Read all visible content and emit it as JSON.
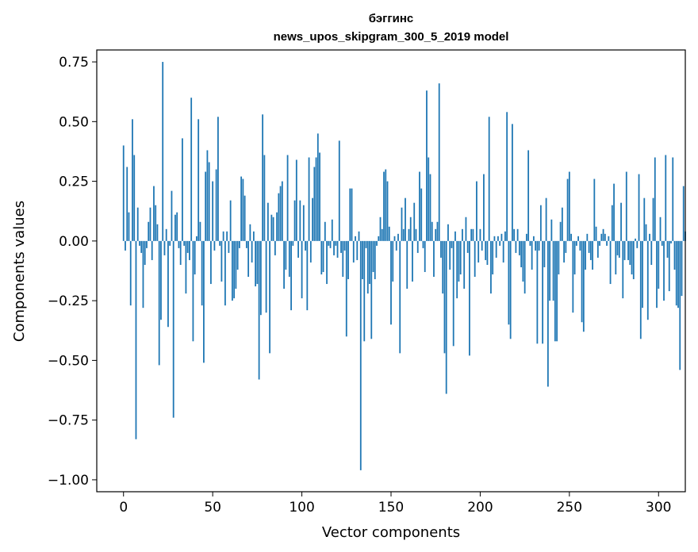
{
  "chart_data": {
    "type": "bar",
    "title": "бэггинс",
    "subtitle": "news_upos_skipgram_300_5_2019 model",
    "xlabel": "Vector components",
    "ylabel": "Components values",
    "xlim": [
      -15,
      315
    ],
    "ylim": [
      -1.05,
      0.8
    ],
    "xticks": [
      0,
      50,
      100,
      150,
      200,
      250,
      300
    ],
    "xtick_labels": [
      "0",
      "50",
      "100",
      "150",
      "200",
      "250",
      "300"
    ],
    "yticks": [
      0.75,
      0.5,
      0.25,
      0.0,
      -0.25,
      -0.5,
      -0.75,
      -1.0
    ],
    "ytick_labels": [
      "0.75",
      "0.50",
      "0.25",
      "0.00",
      "−0.25",
      "−0.50",
      "−0.75",
      "−1.00"
    ],
    "bar_color": "#1f77b4",
    "grid": false,
    "values": [
      0.4,
      -0.04,
      0.31,
      0.12,
      -0.27,
      0.51,
      0.36,
      -0.83,
      0.14,
      -0.02,
      -0.05,
      -0.28,
      -0.1,
      -0.03,
      0.08,
      0.14,
      -0.08,
      0.23,
      0.15,
      0.07,
      -0.52,
      -0.33,
      0.75,
      -0.06,
      0.05,
      -0.36,
      -0.02,
      0.21,
      -0.74,
      0.11,
      0.12,
      -0.03,
      -0.1,
      0.43,
      -0.02,
      -0.22,
      -0.05,
      -0.08,
      0.6,
      -0.42,
      -0.14,
      0.02,
      0.51,
      0.08,
      -0.27,
      -0.51,
      0.29,
      0.38,
      0.33,
      -0.18,
      0.25,
      -0.04,
      0.3,
      0.52,
      -0.02,
      -0.17,
      0.04,
      -0.27,
      0.04,
      -0.05,
      0.17,
      -0.25,
      -0.24,
      -0.2,
      -0.12,
      -0.03,
      0.27,
      0.26,
      0.19,
      -0.03,
      -0.15,
      0.07,
      -0.09,
      0.04,
      -0.19,
      -0.18,
      -0.58,
      -0.31,
      0.53,
      0.36,
      -0.3,
      0.16,
      -0.47,
      0.11,
      0.1,
      -0.06,
      0.12,
      0.2,
      0.23,
      0.25,
      -0.2,
      -0.12,
      0.36,
      -0.15,
      -0.29,
      -0.02,
      0.17,
      0.34,
      -0.07,
      0.17,
      -0.24,
      0.15,
      -0.04,
      -0.29,
      0.35,
      -0.09,
      0.18,
      0.31,
      0.35,
      0.45,
      0.37,
      -0.14,
      -0.13,
      0.08,
      -0.18,
      -0.02,
      -0.03,
      0.09,
      -0.06,
      -0.02,
      -0.07,
      0.42,
      -0.05,
      -0.15,
      -0.04,
      -0.4,
      -0.16,
      0.22,
      0.22,
      -0.09,
      0.02,
      -0.08,
      0.04,
      -0.96,
      -0.16,
      -0.42,
      -0.03,
      -0.22,
      -0.18,
      -0.41,
      -0.13,
      -0.16,
      -0.02,
      0.02,
      0.1,
      0.05,
      0.29,
      0.3,
      0.25,
      0.06,
      -0.35,
      -0.17,
      0.02,
      -0.04,
      0.03,
      -0.47,
      0.14,
      0.05,
      0.18,
      -0.2,
      0.05,
      0.1,
      -0.17,
      0.16,
      0.05,
      -0.05,
      0.29,
      0.22,
      -0.03,
      -0.13,
      0.63,
      0.35,
      0.28,
      0.08,
      -0.15,
      0.05,
      0.08,
      0.66,
      -0.07,
      -0.22,
      -0.47,
      -0.64,
      0.07,
      -0.12,
      -0.03,
      -0.44,
      0.04,
      -0.24,
      -0.17,
      -0.14,
      0.05,
      -0.2,
      0.1,
      -0.05,
      -0.48,
      0.05,
      0.05,
      -0.15,
      0.25,
      -0.09,
      0.05,
      -0.04,
      0.28,
      -0.08,
      -0.1,
      0.52,
      -0.22,
      -0.14,
      0.02,
      -0.07,
      0.02,
      -0.02,
      0.03,
      -0.09,
      0.04,
      0.54,
      -0.35,
      -0.41,
      0.49,
      0.05,
      -0.05,
      0.05,
      -0.06,
      -0.11,
      -0.17,
      -0.22,
      0.03,
      0.38,
      -0.02,
      -0.12,
      0.02,
      -0.04,
      -0.43,
      -0.04,
      0.15,
      -0.43,
      -0.11,
      0.18,
      -0.61,
      -0.25,
      0.09,
      -0.25,
      -0.42,
      -0.42,
      -0.14,
      0.08,
      0.14,
      -0.09,
      -0.05,
      0.26,
      0.29,
      0.03,
      -0.3,
      -0.14,
      -0.02,
      0.02,
      -0.04,
      -0.34,
      -0.38,
      -0.12,
      0.03,
      -0.05,
      -0.08,
      -0.12,
      0.26,
      0.06,
      -0.07,
      -0.02,
      0.03,
      0.05,
      0.03,
      -0.02,
      0.02,
      -0.18,
      0.15,
      0.24,
      -0.14,
      -0.06,
      -0.07,
      0.16,
      -0.24,
      -0.08,
      0.29,
      -0.08,
      -0.1,
      -0.14,
      -0.16,
      0.01,
      -0.03,
      0.28,
      -0.41,
      -0.28,
      0.18,
      0.07,
      -0.33,
      0.03,
      -0.1,
      0.18,
      0.35,
      -0.28,
      -0.2,
      0.1,
      -0.02,
      -0.25,
      0.36,
      -0.07,
      -0.21,
      -0.01,
      0.35,
      -0.12,
      -0.27,
      -0.28,
      -0.54,
      -0.23,
      0.23,
      0.04
    ]
  }
}
